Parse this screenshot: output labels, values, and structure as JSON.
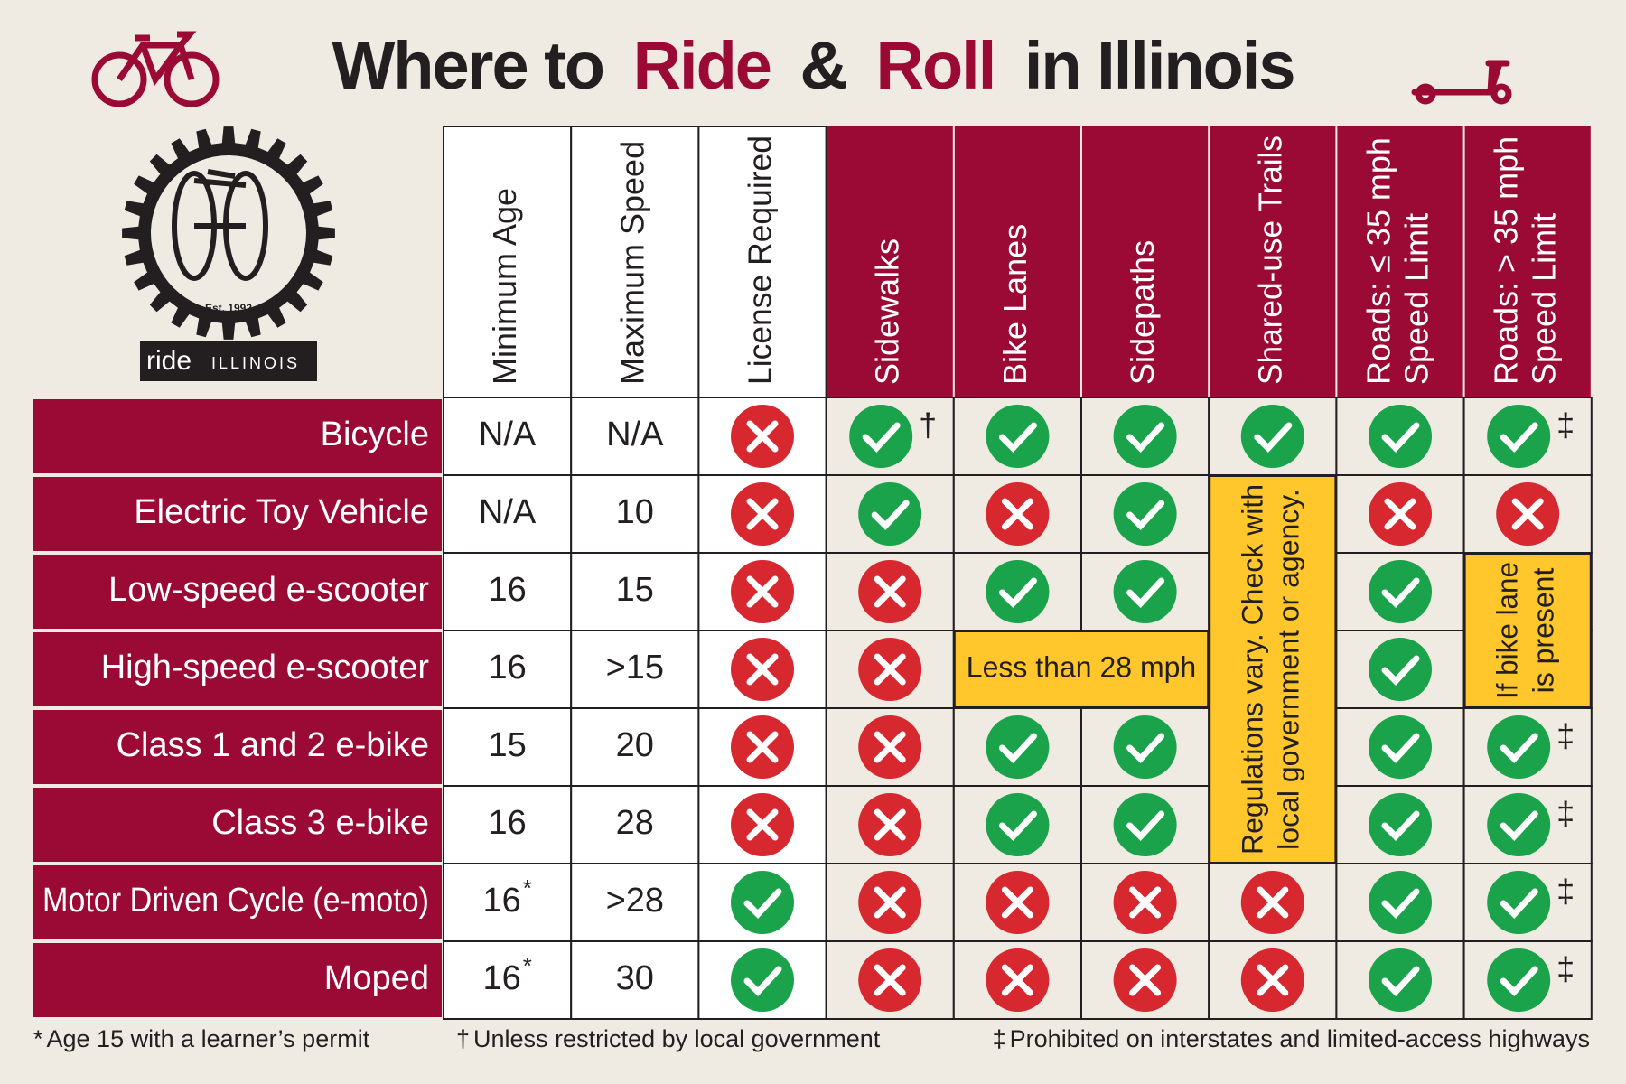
{
  "header": {
    "title": [
      "Where to",
      "Ride",
      "&",
      "Roll",
      "in Illinois"
    ]
  },
  "logo": {
    "established": "Est. 1992",
    "name": "ride",
    "state": "ILLINOIS"
  },
  "table": {
    "columns": [
      [
        "Minimum Age"
      ],
      [
        "Maximum Speed"
      ],
      [
        "License Required"
      ],
      [
        "Sidewalks"
      ],
      [
        "Bike Lanes"
      ],
      [
        "Sidepaths"
      ],
      [
        "Shared-use Trails"
      ],
      [
        "Roads: ≤ 35 mph",
        "Speed Limit"
      ],
      [
        "Roads: > 35 mph",
        "Speed Limit"
      ]
    ],
    "rows": [
      {
        "label": "Bicycle",
        "min_age": "N/A",
        "max_speed": "N/A",
        "cells": [
          false,
          {
            "allowed": true,
            "footnote": "†"
          },
          true,
          true,
          true,
          true,
          {
            "allowed": true,
            "footnote": "‡"
          }
        ]
      },
      {
        "label": "Electric Toy Vehicle",
        "min_age": "N/A",
        "max_speed": "10",
        "cells": [
          false,
          true,
          false,
          true,
          {
            "note": [
              "Regulations vary. Check with",
              "local government or agency."
            ],
            "rowspan": 5
          },
          false,
          false
        ]
      },
      {
        "label": "Low-speed e-scooter",
        "min_age": "16",
        "max_speed": "15",
        "cells": [
          false,
          false,
          true,
          true,
          null,
          true,
          {
            "note": [
              "If bike lane",
              "is present"
            ],
            "rowspan": 2
          }
        ]
      },
      {
        "label": "High-speed e-scooter",
        "min_age": "16",
        "max_speed": ">15",
        "cells": [
          false,
          false,
          {
            "note": [
              "Less than 28 mph"
            ],
            "colspan": 2
          },
          null,
          null,
          true,
          null
        ]
      },
      {
        "label": "Class 1 and 2 e-bike",
        "min_age": "15",
        "max_speed": "20",
        "cells": [
          false,
          false,
          true,
          true,
          null,
          true,
          {
            "allowed": true,
            "footnote": "‡"
          }
        ]
      },
      {
        "label": "Class 3 e-bike",
        "min_age": "16",
        "max_speed": "28",
        "cells": [
          false,
          false,
          true,
          true,
          null,
          true,
          {
            "allowed": true,
            "footnote": "‡"
          }
        ]
      },
      {
        "label": "Motor Driven Cycle (e-moto)",
        "min_age": "16",
        "min_age_footnote": "*",
        "max_speed": ">28",
        "cells": [
          true,
          false,
          false,
          false,
          false,
          true,
          {
            "allowed": true,
            "footnote": "‡"
          }
        ]
      },
      {
        "label": "Moped",
        "min_age": "16",
        "min_age_footnote": "*",
        "max_speed": "30",
        "cells": [
          true,
          false,
          false,
          false,
          false,
          true,
          {
            "allowed": true,
            "footnote": "‡"
          }
        ]
      }
    ]
  },
  "footnotes": [
    {
      "symbol": "*",
      "text": "Age 15 with a learner’s permit"
    },
    {
      "symbol": "†",
      "text": "Unless restricted by local government"
    },
    {
      "symbol": "‡",
      "text": "Prohibited on interstates and limited-access highways"
    }
  ]
}
